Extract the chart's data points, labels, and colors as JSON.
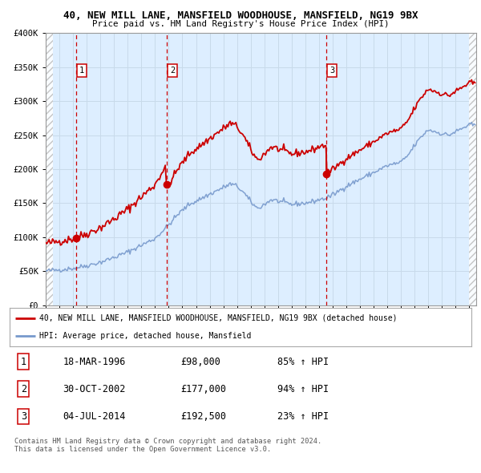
{
  "title": "40, NEW MILL LANE, MANSFIELD WOODHOUSE, MANSFIELD, NG19 9BX",
  "subtitle": "Price paid vs. HM Land Registry's House Price Index (HPI)",
  "ylim": [
    0,
    400000
  ],
  "yticks": [
    0,
    50000,
    100000,
    150000,
    200000,
    250000,
    300000,
    350000,
    400000
  ],
  "sale_year_floats": [
    1996.21,
    2002.83,
    2014.51
  ],
  "sale_prices": [
    98000,
    177000,
    192500
  ],
  "sale_labels": [
    "1",
    "2",
    "3"
  ],
  "legend_red": "40, NEW MILL LANE, MANSFIELD WOODHOUSE, MANSFIELD, NG19 9BX (detached house)",
  "legend_blue": "HPI: Average price, detached house, Mansfield",
  "table_rows": [
    [
      "1",
      "18-MAR-1996",
      "£98,000",
      "85% ↑ HPI"
    ],
    [
      "2",
      "30-OCT-2002",
      "£177,000",
      "94% ↑ HPI"
    ],
    [
      "3",
      "04-JUL-2014",
      "£192,500",
      "23% ↑ HPI"
    ]
  ],
  "footer": "Contains HM Land Registry data © Crown copyright and database right 2024.\nThis data is licensed under the Open Government Licence v3.0.",
  "red_color": "#cc0000",
  "blue_color": "#7799cc",
  "grid_color": "#c8daea",
  "background_color": "#ddeeff",
  "hatch_bg": "#e8e8e8",
  "xstart": 1994.0,
  "xend": 2025.5
}
